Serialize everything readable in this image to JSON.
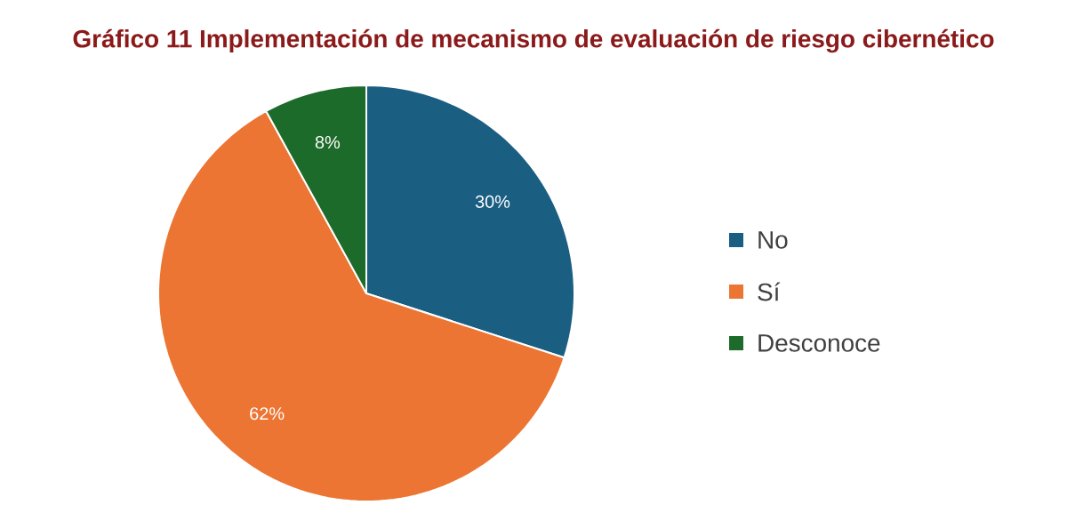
{
  "chart_data": {
    "type": "pie",
    "title": "Gráfico 11 Implementación de mecanismo de evaluación de riesgo cibernético",
    "categories": [
      "No",
      "Sí",
      "Desconoce"
    ],
    "values": [
      30,
      62,
      8
    ],
    "colors": [
      "#1a5e82",
      "#ec7533",
      "#1d6b2a"
    ],
    "value_labels": [
      "30%",
      "62%",
      "8%"
    ],
    "legend": "right"
  }
}
